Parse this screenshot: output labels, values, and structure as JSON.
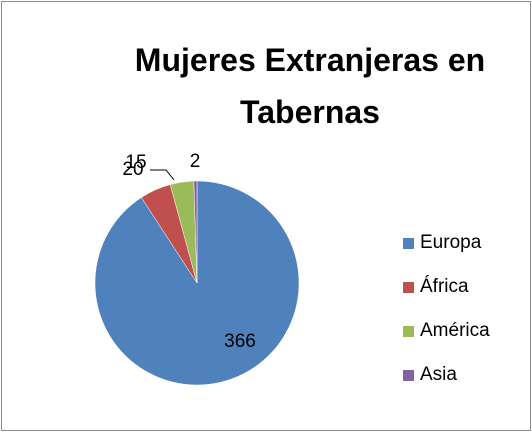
{
  "chart_data": {
    "type": "pie",
    "title": "Mujeres Extranjeras en Tabernas",
    "categories": [
      "Europa",
      "África",
      "América",
      "Asia"
    ],
    "values": [
      366,
      20,
      15,
      2
    ],
    "colors": [
      "#4f81bd",
      "#c0504d",
      "#9bbb59",
      "#8064a2"
    ],
    "legend": "right"
  }
}
